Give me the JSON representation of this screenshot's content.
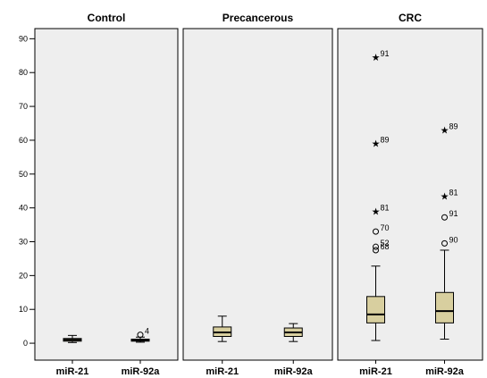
{
  "chart_data": {
    "type": "boxplot",
    "ylim": [
      -5,
      93
    ],
    "yticks": [
      0,
      10,
      20,
      30,
      40,
      50,
      60,
      70,
      80,
      90
    ],
    "grid": false,
    "colors": {
      "box_fill": "#d8cf9f",
      "panel_bg": "#eeeeee",
      "frame": "#000000"
    },
    "panels": [
      {
        "title": "Control",
        "categories": [
          "miR-21",
          "miR-92a"
        ],
        "boxes": [
          {
            "category": "miR-21",
            "min": 0.2,
            "q1": 0.6,
            "median": 1.0,
            "q3": 1.4,
            "max": 2.3,
            "outliers": []
          },
          {
            "category": "miR-92a",
            "min": 0.3,
            "q1": 0.6,
            "median": 0.9,
            "q3": 1.2,
            "max": 1.8,
            "outliers": [
              {
                "value": 2.5,
                "label": "4",
                "marker": "circle"
              }
            ]
          }
        ]
      },
      {
        "title": "Precancerous",
        "categories": [
          "miR-21",
          "miR-92a"
        ],
        "boxes": [
          {
            "category": "miR-21",
            "min": 0.5,
            "q1": 2.0,
            "median": 3.2,
            "q3": 4.8,
            "max": 8.0,
            "outliers": []
          },
          {
            "category": "miR-92a",
            "min": 0.5,
            "q1": 2.0,
            "median": 3.2,
            "q3": 4.5,
            "max": 5.8,
            "outliers": []
          }
        ]
      },
      {
        "title": "CRC",
        "categories": [
          "miR-21",
          "miR-92a"
        ],
        "boxes": [
          {
            "category": "miR-21",
            "min": 0.8,
            "q1": 6.0,
            "median": 8.5,
            "q3": 13.8,
            "max": 22.8,
            "outliers": [
              {
                "value": 27.5,
                "label": "68",
                "marker": "circle"
              },
              {
                "value": 28.5,
                "label": "52",
                "marker": "circle"
              },
              {
                "value": 33.0,
                "label": "70",
                "marker": "circle"
              },
              {
                "value": 39.0,
                "label": "81",
                "marker": "star"
              },
              {
                "value": 59.0,
                "label": "89",
                "marker": "star"
              },
              {
                "value": 84.5,
                "label": "91",
                "marker": "star"
              }
            ]
          },
          {
            "category": "miR-92a",
            "min": 1.2,
            "q1": 6.0,
            "median": 9.5,
            "q3": 15.0,
            "max": 27.5,
            "outliers": [
              {
                "value": 29.5,
                "label": "90",
                "marker": "circle"
              },
              {
                "value": 37.2,
                "label": "91",
                "marker": "circle"
              },
              {
                "value": 43.5,
                "label": "81",
                "marker": "star"
              },
              {
                "value": 63.0,
                "label": "89",
                "marker": "star"
              }
            ]
          }
        ]
      }
    ]
  }
}
